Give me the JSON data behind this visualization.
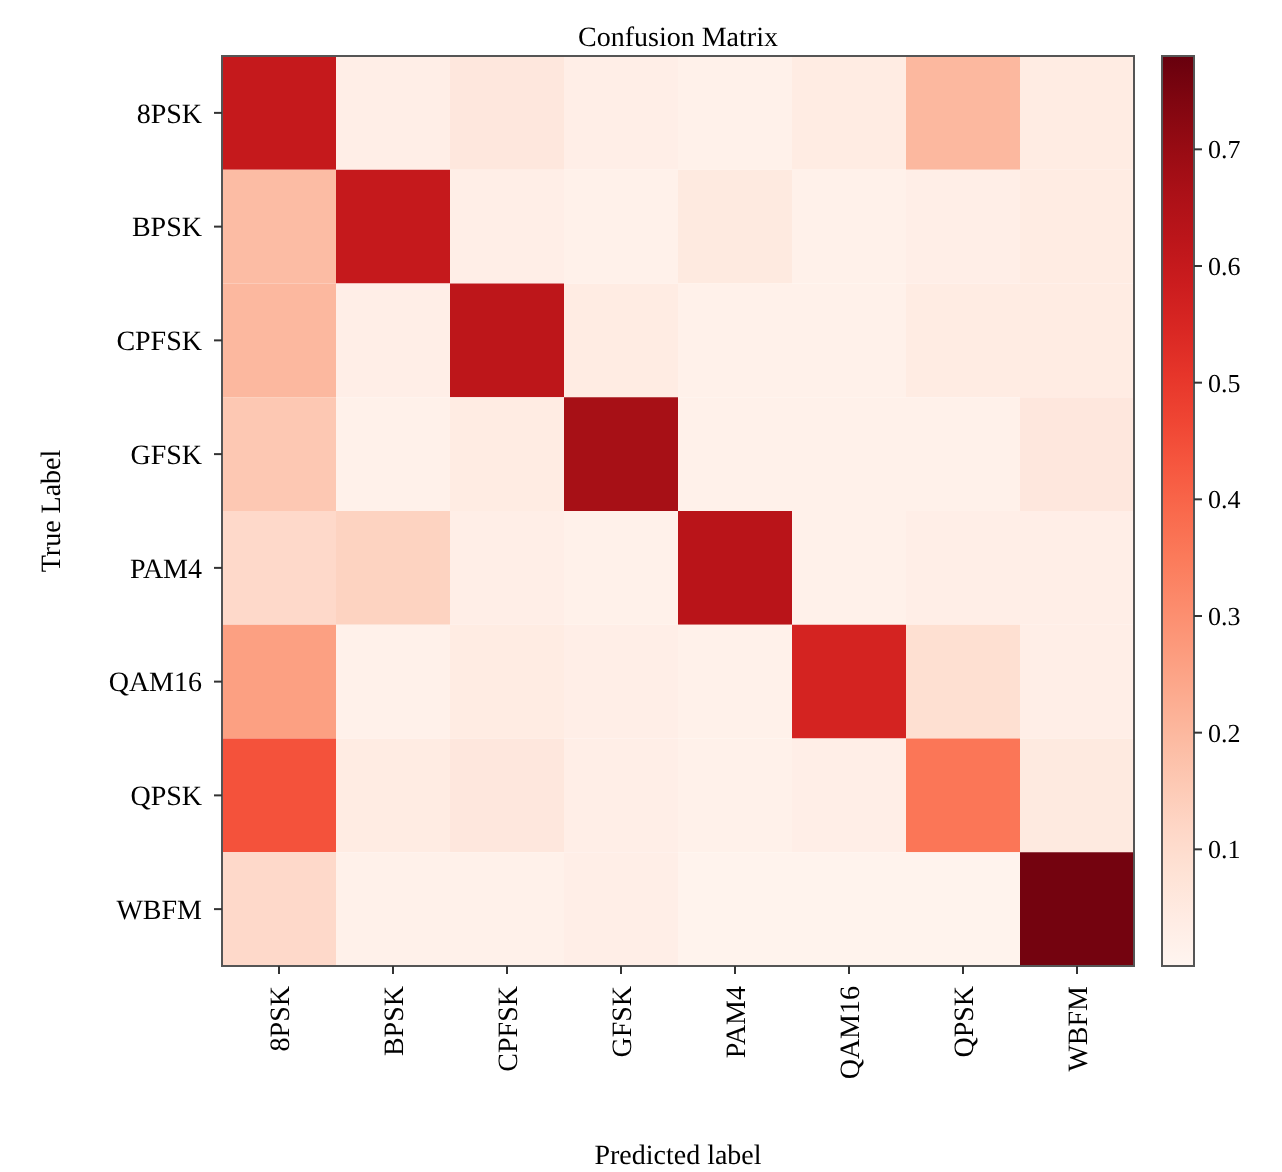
{
  "chart_data": {
    "type": "heatmap",
    "title": "Confusion Matrix",
    "xlabel": "Predicted label",
    "ylabel": "True Label",
    "categories": [
      "8PSK",
      "BPSK",
      "CPFSK",
      "GFSK",
      "PAM4",
      "QAM16",
      "QPSK",
      "WBFM"
    ],
    "y_categories": [
      "8PSK",
      "BPSK",
      "CPFSK",
      "GFSK",
      "PAM4",
      "QAM16",
      "QPSK",
      "WBFM"
    ],
    "cells": [
      [
        0.6,
        0.03,
        0.06,
        0.03,
        0.02,
        0.04,
        0.2,
        0.04
      ],
      [
        0.19,
        0.6,
        0.03,
        0.02,
        0.05,
        0.02,
        0.03,
        0.04
      ],
      [
        0.2,
        0.03,
        0.62,
        0.04,
        0.02,
        0.02,
        0.04,
        0.04
      ],
      [
        0.16,
        0.02,
        0.04,
        0.67,
        0.02,
        0.02,
        0.02,
        0.06
      ],
      [
        0.11,
        0.13,
        0.03,
        0.02,
        0.63,
        0.02,
        0.03,
        0.03
      ],
      [
        0.26,
        0.02,
        0.04,
        0.03,
        0.02,
        0.56,
        0.09,
        0.03
      ],
      [
        0.44,
        0.04,
        0.06,
        0.03,
        0.02,
        0.03,
        0.36,
        0.05
      ],
      [
        0.11,
        0.02,
        0.02,
        0.03,
        0.01,
        0.01,
        0.01,
        0.76
      ]
    ],
    "clim": [
      0,
      0.78
    ],
    "cticks": [
      0.1,
      0.2,
      0.3,
      0.4,
      0.5,
      0.6,
      0.7
    ]
  }
}
